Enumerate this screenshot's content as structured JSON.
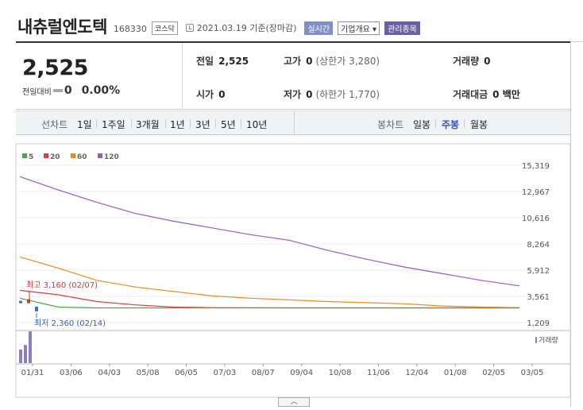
{
  "header": {
    "name": "내츄럴엔도텍",
    "code": "168330",
    "market": "코스닥",
    "date": "2021.03.19",
    "basis": "기준(장마감)",
    "realtime": "실시간",
    "company_info": "기업개요",
    "watch": "관리종목"
  },
  "quote": {
    "price": "2,525",
    "change_label": "전일대비",
    "change": "0",
    "change_pct": "0.00%",
    "prev_label": "전일",
    "prev": "2,525",
    "high_label": "고가",
    "high": "0",
    "upper_limit": "(상한가 3,280)",
    "volume_label": "거래량",
    "volume": "0",
    "open_label": "시가",
    "open": "0",
    "low_label": "저가",
    "low": "0",
    "lower_limit": "(하한가 1,770)",
    "value_label": "거래대금",
    "value": "0 백만"
  },
  "period": {
    "line_label": "선차트",
    "line_options": [
      "1일",
      "1주일",
      "3개월",
      "1년",
      "3년",
      "5년",
      "10년"
    ],
    "candle_label": "봉차트",
    "candle_options": [
      "일봉",
      "주봉",
      "월봉"
    ],
    "candle_selected": 1
  },
  "colors": {
    "ma5": "#44aa44",
    "ma20": "#e23b3b",
    "ma60": "#f08a1a",
    "ma120": "#9b59c6",
    "volume": "#8d7bc4",
    "selected": "#2b50c8"
  },
  "chart_data": {
    "type": "line",
    "y_ticks": [
      "15,319",
      "12,967",
      "10,616",
      "8,264",
      "5,912",
      "3,561",
      "1,209"
    ],
    "ylim": [
      1209,
      15319
    ],
    "x_ticks": [
      "01/31",
      "03/06",
      "04/03",
      "05/08",
      "06/05",
      "07/03",
      "08/07",
      "09/04",
      "10/08",
      "11/06",
      "12/04",
      "01/08",
      "02/05",
      "03/05"
    ],
    "annotations": {
      "high_label": "최고",
      "high_value": "3,160 (02/07)",
      "low_label": "최저",
      "low_value": "2,360 (02/14)"
    },
    "volume_label": "거래량",
    "series": [
      {
        "name": "5",
        "values": [
          3400,
          2600,
          2530,
          2525,
          2525,
          2525,
          2525,
          2525,
          2525,
          2525,
          2525,
          2525,
          2525,
          2525
        ]
      },
      {
        "name": "20",
        "values": [
          4100,
          3700,
          3100,
          2800,
          2600,
          2550,
          2540,
          2530,
          2525,
          2525,
          2525,
          2525,
          2525,
          2525
        ]
      },
      {
        "name": "60",
        "values": [
          7100,
          6100,
          5000,
          4400,
          4000,
          3600,
          3400,
          3250,
          3100,
          3000,
          2900,
          2700,
          2600,
          2550
        ]
      },
      {
        "name": "120",
        "values": [
          14300,
          13100,
          12000,
          11000,
          10300,
          9700,
          9100,
          8600,
          7700,
          6900,
          6200,
          5600,
          5000,
          4500
        ]
      }
    ],
    "volume_values": [
      3,
      4,
      7,
      0,
      0,
      0,
      0,
      0,
      0,
      0,
      0,
      0,
      0,
      0
    ]
  }
}
